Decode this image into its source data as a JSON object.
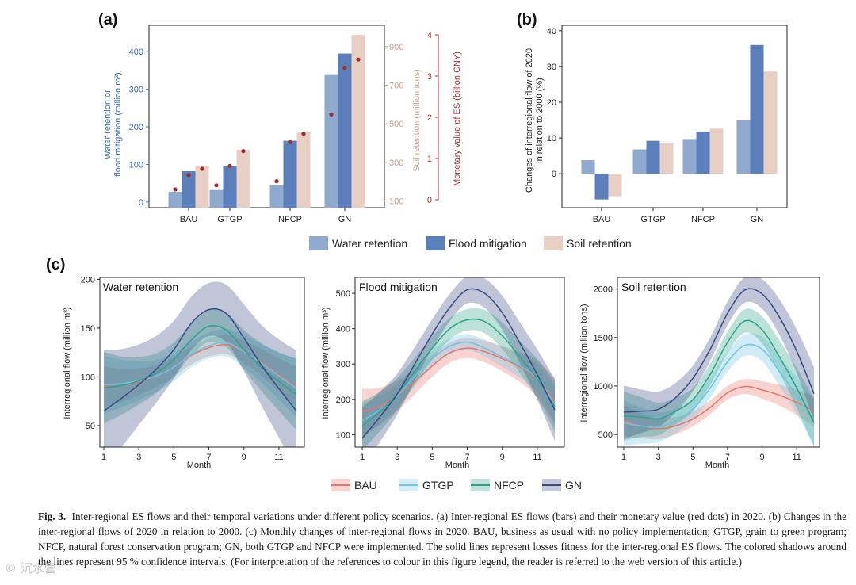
{
  "panel_labels": [
    "(a)",
    "(b)",
    "(c)"
  ],
  "legend_bars": [
    {
      "name": "Water retention",
      "color": "#8fa9cf"
    },
    {
      "name": "Flood mitigation",
      "color": "#5a7fba"
    },
    {
      "name": "Soil retention",
      "color": "#e8cfc3"
    }
  ],
  "legend_lines": [
    {
      "name": "BAU",
      "color": "#e8756b"
    },
    {
      "name": "GTGP",
      "color": "#6cc3e6"
    },
    {
      "name": "NFCP",
      "color": "#2aa38a"
    },
    {
      "name": "GN",
      "color": "#3b4a85"
    }
  ],
  "colors": {
    "blue_axis": "#3d6fb5",
    "soil_axis": "#c9a08a",
    "money_axis": "#a83232",
    "dot": "#a12b2b"
  },
  "chart_data": [
    {
      "id": "a",
      "type": "bar",
      "categories": [
        "BAU",
        "GTGP",
        "NFCP",
        "GN"
      ],
      "series": [
        {
          "name": "Water retention",
          "axis": "left",
          "values": [
            27,
            32,
            45,
            340
          ]
        },
        {
          "name": "Flood mitigation",
          "axis": "left",
          "values": [
            82,
            96,
            163,
            395
          ]
        },
        {
          "name": "Soil retention",
          "axis": "soil",
          "values": [
            280,
            365,
            455,
            960
          ]
        },
        {
          "name": "Monetary value",
          "axis": "money",
          "type": "dots",
          "values": [
            [
              0.25,
              0.6,
              0.75
            ],
            [
              0.35,
              0.82,
              1.18
            ],
            [
              0.45,
              1.4,
              1.6
            ],
            [
              2.07,
              3.2,
              3.4
            ]
          ]
        }
      ],
      "ylabel": "Water retention or\nflood mitigation (million m³)",
      "ylabel2": "Soil retention (million tons)",
      "ylabel3": "Monetary value of ES (billion CNY)",
      "ylim": [
        -15,
        470
      ],
      "yticks": [
        "0",
        "100",
        "200",
        "300",
        "400"
      ],
      "y2lim": [
        65,
        1010
      ],
      "y2ticks": [
        "100",
        "300",
        "500",
        "700",
        "900"
      ],
      "y3lim": [
        0,
        4
      ],
      "y3ticks": [
        "0",
        "1",
        "2",
        "3",
        "4"
      ]
    },
    {
      "id": "b",
      "type": "bar",
      "categories": [
        "BAU",
        "GTGP",
        "NFCP",
        "GN"
      ],
      "series": [
        {
          "name": "Water retention",
          "values": [
            3.8,
            6.8,
            9.7,
            15
          ]
        },
        {
          "name": "Flood mitigation",
          "values": [
            -7.2,
            9.2,
            11.8,
            36
          ]
        },
        {
          "name": "Soil retention",
          "values": [
            -6.3,
            8.7,
            12.6,
            28.6
          ]
        }
      ],
      "ylabel": "Changes of interregional flow of 2020\nin relation to 2000 (%)",
      "ylim": [
        -9.5,
        41.5
      ],
      "yticks": [
        "0",
        "10",
        "20",
        "30",
        "40"
      ]
    },
    {
      "id": "c1",
      "type": "line",
      "title": "Water retention",
      "xlabel": "Month",
      "ylabel": "Interregional flow (million m³)",
      "x": [
        1,
        2,
        3,
        4,
        5,
        6,
        7,
        8,
        9,
        10,
        11,
        12
      ],
      "xticks": [
        "1",
        "3",
        "5",
        "7",
        "9",
        "11"
      ],
      "ylim": [
        28,
        202
      ],
      "yticks": [
        "50",
        "100",
        "150",
        "200"
      ],
      "series": [
        {
          "name": "BAU",
          "values": [
            90,
            91,
            95,
            101,
            110,
            122,
            130,
            133,
            126,
            115,
            102,
            90
          ],
          "band": 9
        },
        {
          "name": "GTGP",
          "values": [
            92,
            93,
            96,
            101,
            110,
            123,
            132,
            135,
            126,
            114,
            101,
            88
          ],
          "band": 13
        },
        {
          "name": "NFCP",
          "values": [
            89,
            91,
            96,
            104,
            118,
            138,
            152,
            148,
            128,
            110,
            95,
            82
          ],
          "band": 16
        },
        {
          "name": "GN",
          "values": [
            65,
            78,
            92,
            108,
            128,
            155,
            169,
            165,
            140,
            112,
            88,
            65
          ],
          "band": 27
        }
      ]
    },
    {
      "id": "c2",
      "type": "line",
      "title": "Flood mitigation",
      "xlabel": "Month",
      "ylabel": "Interregional flow (million m³)",
      "x": [
        1,
        2,
        3,
        4,
        5,
        6,
        7,
        8,
        9,
        10,
        11,
        12
      ],
      "xticks": [
        "1",
        "3",
        "5",
        "7",
        "9",
        "11"
      ],
      "ylim": [
        65,
        545
      ],
      "yticks": [
        "100",
        "200",
        "300",
        "400",
        "500"
      ],
      "series": [
        {
          "name": "BAU",
          "values": [
            165,
            180,
            210,
            250,
            295,
            332,
            345,
            335,
            315,
            292,
            258,
            195
          ],
          "band": 28
        },
        {
          "name": "GTGP",
          "values": [
            140,
            170,
            210,
            265,
            315,
            350,
            362,
            345,
            320,
            295,
            260,
            185
          ],
          "band": 22
        },
        {
          "name": "NFCP",
          "values": [
            125,
            165,
            215,
            280,
            345,
            400,
            425,
            420,
            380,
            320,
            258,
            180
          ],
          "band": 30
        },
        {
          "name": "GN",
          "values": [
            90,
            150,
            215,
            300,
            385,
            460,
            510,
            500,
            445,
            360,
            270,
            170
          ],
          "band": 38
        }
      ]
    },
    {
      "id": "c3",
      "type": "line",
      "title": "Soil retention",
      "xlabel": "Month",
      "ylabel": "Interregional flow (million tons)",
      "x": [
        1,
        2,
        3,
        4,
        5,
        6,
        7,
        8,
        9,
        10,
        11,
        12
      ],
      "xticks": [
        "1",
        "3",
        "5",
        "7",
        "9",
        "11"
      ],
      "ylim": [
        370,
        2120
      ],
      "yticks": [
        "500",
        "1000",
        "1500",
        "2000"
      ],
      "series": [
        {
          "name": "BAU",
          "values": [
            640,
            590,
            560,
            590,
            660,
            780,
            930,
            995,
            960,
            905,
            830,
            740
          ],
          "band": 70
        },
        {
          "name": "GTGP",
          "values": [
            620,
            590,
            575,
            640,
            760,
            980,
            1250,
            1420,
            1380,
            1150,
            900,
            620
          ],
          "band": 100
        },
        {
          "name": "NFCP",
          "values": [
            690,
            680,
            660,
            740,
            860,
            1120,
            1450,
            1670,
            1580,
            1300,
            980,
            620
          ],
          "band": 110
        },
        {
          "name": "GN",
          "values": [
            730,
            740,
            760,
            880,
            1080,
            1380,
            1750,
            1990,
            1950,
            1710,
            1360,
            920
          ],
          "band": 120
        }
      ]
    }
  ],
  "caption": {
    "lead": "Fig. 3.",
    "text": "Inter-regional ES flows and their temporal variations under different policy scenarios. (a) Inter-regional ES flows (bars) and their monetary value (red dots) in 2020. (b) Changes in the inter-regional flows of 2020 in relation to 2000. (c) Monthly changes of inter-regional flows in 2020. BAU, business as usual with no policy implementation; GTGP, grain to green program; NFCP, natural forest conservation program; GN, both GTGP and NFCP were implemented. The solid lines represent losses fitness for the inter-regional ES flows. The colored shadows around the lines represent 95 % confidence intervals. (For interpretation of the references to colour in this figure legend, the reader is referred to the web version of this article.)"
  },
  "watermark": "© 沉水营"
}
